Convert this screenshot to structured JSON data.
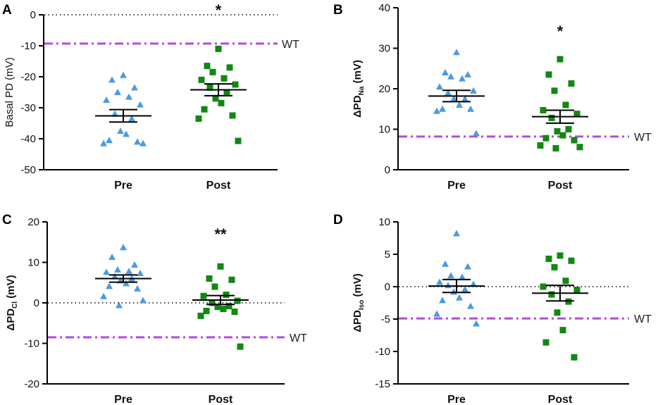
{
  "colors": {
    "pre": "#4a9be0",
    "post": "#118811",
    "wt": "#b34bdd",
    "axis": "#000000"
  },
  "chart_data": [
    {
      "type": "scatter",
      "panel": "A",
      "ylabel_main": "Basal PD (mV)",
      "ylabel_sub": "",
      "ylabel_post": "",
      "ylim": [
        -50,
        0
      ],
      "yticks": [
        0,
        -10,
        -20,
        -30,
        -40,
        -50
      ],
      "categories": [
        "Pre",
        "Post"
      ],
      "zero_dotted": true,
      "wt_value": -9.3,
      "wt_label": "WT",
      "significance": "*",
      "series": [
        {
          "name": "Pre",
          "marker": "triangle",
          "mean": -32.6,
          "sem": 2.0,
          "values": [
            -19.5,
            -21.0,
            -23.5,
            -25.0,
            -26.5,
            -27.5,
            -29.0,
            -32.0,
            -33.5,
            -37.5,
            -38.5,
            -40.5,
            -41.0,
            -41.5,
            -41.5
          ]
        },
        {
          "name": "Post",
          "marker": "square",
          "mean": -24.2,
          "sem": 1.9,
          "values": [
            -11.0,
            -16.5,
            -17.0,
            -18.5,
            -20.5,
            -21.0,
            -22.5,
            -23.5,
            -25.0,
            -27.0,
            -28.5,
            -30.5,
            -32.5,
            -33.5,
            -40.7
          ]
        }
      ]
    },
    {
      "type": "scatter",
      "panel": "B",
      "ylabel_main": "ΔPD",
      "ylabel_sub": "Na",
      "ylabel_post": " (mV)",
      "ylim": [
        0,
        40
      ],
      "yticks": [
        0,
        10,
        20,
        30,
        40
      ],
      "categories": [
        "Pre",
        "Post"
      ],
      "zero_dotted": false,
      "wt_value": 8.2,
      "wt_label": "WT",
      "significance": "*",
      "series": [
        {
          "name": "Pre",
          "marker": "triangle",
          "mean": 18.2,
          "sem": 1.4,
          "values": [
            29.0,
            24.0,
            23.5,
            23.0,
            22.5,
            20.5,
            19.5,
            19.0,
            17.5,
            17.5,
            16.0,
            15.0,
            15.0,
            14.5,
            9.0
          ]
        },
        {
          "name": "Post",
          "marker": "square",
          "mean": 13.1,
          "sem": 1.6,
          "values": [
            27.3,
            23.5,
            21.3,
            19.5,
            16.0,
            14.7,
            13.8,
            12.8,
            10.0,
            9.5,
            8.5,
            7.8,
            7.3,
            6.0,
            5.6,
            5.3
          ]
        }
      ]
    },
    {
      "type": "scatter",
      "panel": "C",
      "ylabel_main": "ΔPD",
      "ylabel_sub": "Cl",
      "ylabel_post": " (mV)",
      "ylim": [
        -20,
        20
      ],
      "yticks": [
        20,
        10,
        0,
        -10,
        -20
      ],
      "categories": [
        "Pre",
        "Post"
      ],
      "zero_dotted": true,
      "wt_value": -8.5,
      "wt_label": "WT",
      "significance": "**",
      "series": [
        {
          "name": "Pre",
          "marker": "triangle",
          "mean": 6.0,
          "sem": 0.9,
          "values": [
            13.7,
            11.3,
            9.4,
            8.2,
            7.8,
            7.6,
            7.3,
            6.5,
            6.0,
            5.5,
            4.8,
            4.1,
            3.5,
            1.6,
            0.6,
            -0.6
          ]
        },
        {
          "name": "Post",
          "marker": "square",
          "mean": 0.7,
          "sem": 1.1,
          "values": [
            9.0,
            6.0,
            5.7,
            4.0,
            2.0,
            1.7,
            0.5,
            0.0,
            -0.8,
            -1.0,
            -1.5,
            -2.0,
            -2.2,
            -3.2,
            -10.8
          ]
        }
      ]
    },
    {
      "type": "scatter",
      "panel": "D",
      "ylabel_main": "ΔPD",
      "ylabel_sub": "Iso",
      "ylabel_post": " (mV)",
      "ylim": [
        -15,
        10
      ],
      "yticks": [
        10,
        5,
        0,
        -5,
        -10,
        -15
      ],
      "categories": [
        "Pre",
        "Post"
      ],
      "zero_dotted": true,
      "wt_value": -4.9,
      "wt_label": "WT",
      "significance": "",
      "series": [
        {
          "name": "Pre",
          "marker": "triangle",
          "mean": 0.1,
          "sem": 1.0,
          "values": [
            8.2,
            3.5,
            3.1,
            1.7,
            1.5,
            0.7,
            0.4,
            0.2,
            -0.4,
            -0.8,
            -1.7,
            -2.1,
            -3.0,
            -4.2,
            -5.7
          ]
        },
        {
          "name": "Post",
          "marker": "square",
          "mean": -1.0,
          "sem": 1.2,
          "values": [
            4.8,
            4.3,
            4.0,
            3.0,
            0.9,
            0.0,
            -0.5,
            -1.2,
            -2.3,
            -4.0,
            -6.7,
            -8.6,
            -10.9
          ]
        }
      ]
    }
  ]
}
